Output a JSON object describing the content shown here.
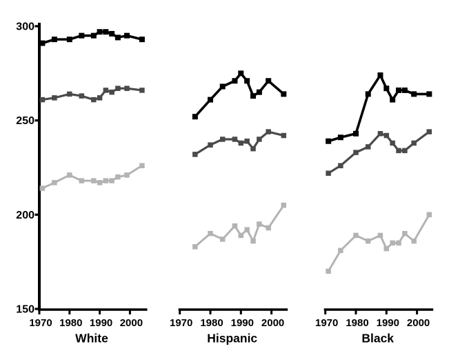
{
  "chart_data": {
    "type": "line",
    "title": "",
    "xlabel": "",
    "ylabel": "",
    "ylim": [
      150,
      300
    ],
    "yticks": [
      300,
      250,
      200,
      150
    ],
    "xticks": [
      1970,
      1980,
      1990,
      2000
    ],
    "grid": false,
    "legend": "none",
    "marker_shape": "square",
    "background_color": "#ffffff",
    "axis_color": "#000000",
    "series_colors": {
      "top": "#000000",
      "middle": "#4a4a4a",
      "bottom": "#b3b3b3"
    },
    "panels": [
      {
        "label": "White",
        "x": [
          1971,
          1975,
          1980,
          1984,
          1988,
          1990,
          1992,
          1994,
          1996,
          1999,
          2004
        ],
        "series": [
          {
            "name": "top-black-line",
            "color": "#000000",
            "values": [
              291,
              293,
              293,
              295,
              295,
              297,
              297,
              296,
              294,
              295,
              293
            ]
          },
          {
            "name": "middle-dark-gray-line",
            "color": "#4a4a4a",
            "values": [
              261,
              262,
              264,
              263,
              261,
              262,
              266,
              265,
              267,
              267,
              266
            ]
          },
          {
            "name": "bottom-light-gray-line",
            "color": "#b3b3b3",
            "values": [
              214,
              217,
              221,
              218,
              218,
              217,
              218,
              218,
              220,
              221,
              226
            ]
          }
        ]
      },
      {
        "label": "Hispanic",
        "x": [
          1975,
          1980,
          1984,
          1988,
          1990,
          1992,
          1994,
          1996,
          1999,
          2004
        ],
        "series": [
          {
            "name": "top-black-line",
            "color": "#000000",
            "values": [
              252,
              261,
              268,
              271,
              275,
              271,
              263,
              265,
              271,
              264
            ]
          },
          {
            "name": "middle-dark-gray-line",
            "color": "#4a4a4a",
            "values": [
              232,
              237,
              240,
              240,
              238,
              239,
              235,
              240,
              244,
              242
            ]
          },
          {
            "name": "bottom-light-gray-line",
            "color": "#b3b3b3",
            "values": [
              183,
              190,
              187,
              194,
              189,
              192,
              186,
              195,
              193,
              205
            ]
          }
        ]
      },
      {
        "label": "Black",
        "x": [
          1971,
          1975,
          1980,
          1984,
          1988,
          1990,
          1992,
          1994,
          1996,
          1999,
          2004
        ],
        "series": [
          {
            "name": "top-black-line",
            "color": "#000000",
            "values": [
              239,
              241,
              243,
              264,
              274,
              267,
              261,
              266,
              266,
              264,
              264
            ]
          },
          {
            "name": "middle-dark-gray-line",
            "color": "#4a4a4a",
            "values": [
              222,
              226,
              233,
              236,
              243,
              242,
              238,
              234,
              234,
              238,
              244
            ]
          },
          {
            "name": "bottom-light-gray-line",
            "color": "#b3b3b3",
            "values": [
              170,
              181,
              189,
              186,
              189,
              182,
              185,
              185,
              190,
              186,
              200
            ]
          }
        ]
      }
    ]
  }
}
